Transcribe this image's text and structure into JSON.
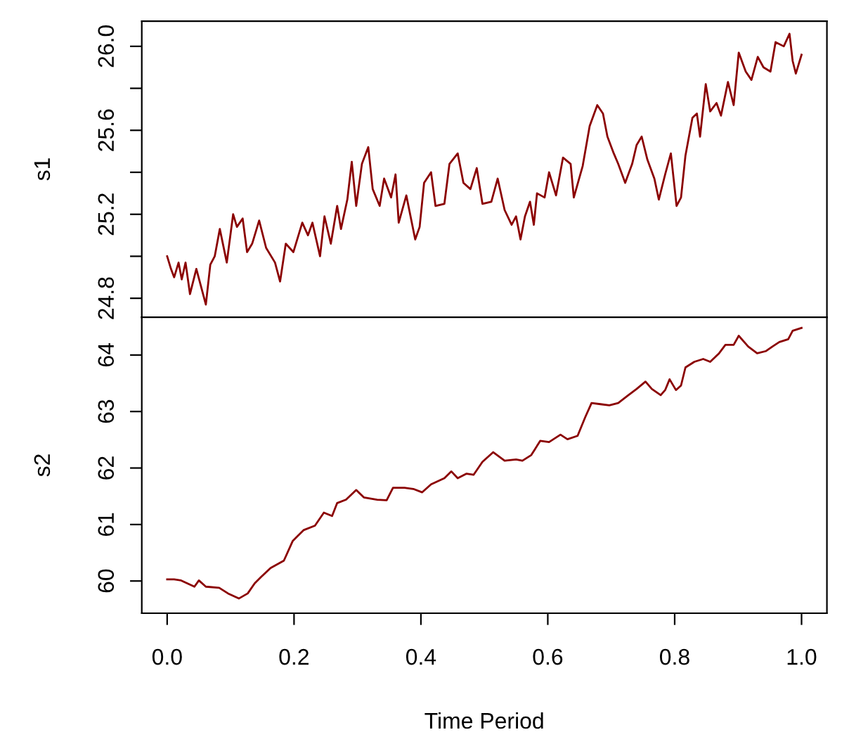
{
  "chart_data": [
    {
      "type": "line",
      "ylabel": "s1",
      "tick_labels": "y",
      "grid": false,
      "xlim": [
        -0.04,
        1.04
      ],
      "ylim": [
        24.71,
        26.12
      ],
      "yticks": [
        24.8,
        {
          "value": 25.0,
          "label": null
        },
        25.2,
        {
          "value": 25.4,
          "label": null
        },
        25.6,
        {
          "value": 25.8,
          "label": null
        },
        {
          "value": 26,
          "label": "26.0"
        }
      ],
      "series": [
        {
          "color": "#8b0000",
          "x": [
            0,
            0.006,
            0.011,
            0.018,
            0.023,
            0.029,
            0.036,
            0.046,
            0.061,
            0.068,
            0.075,
            0.083,
            0.094,
            0.104,
            0.11,
            0.119,
            0.126,
            0.134,
            0.145,
            0.156,
            0.17,
            0.178,
            0.187,
            0.199,
            0.213,
            0.222,
            0.229,
            0.241,
            0.248,
            0.258,
            0.268,
            0.274,
            0.284,
            0.291,
            0.298,
            0.307,
            0.317,
            0.324,
            0.335,
            0.342,
            0.353,
            0.36,
            0.365,
            0.377,
            0.391,
            0.398,
            0.405,
            0.416,
            0.423,
            0.437,
            0.445,
            0.458,
            0.467,
            0.478,
            0.488,
            0.497,
            0.511,
            0.521,
            0.532,
            0.543,
            0.55,
            0.557,
            0.564,
            0.572,
            0.578,
            0.583,
            0.595,
            0.602,
            0.613,
            0.624,
            0.636,
            0.641,
            0.655,
            0.666,
            0.678,
            0.687,
            0.694,
            0.704,
            0.711,
            0.722,
            0.733,
            0.74,
            0.748,
            0.757,
            0.768,
            0.775,
            0.785,
            0.794,
            0.803,
            0.81,
            0.817,
            0.828,
            0.835,
            0.84,
            0.849,
            0.856,
            0.866,
            0.873,
            0.884,
            0.893,
            0.901,
            0.912,
            0.921,
            0.931,
            0.94,
            0.951,
            0.959,
            0.972,
            0.981,
            0.986,
            0.991,
            1.0
          ],
          "values": [
            25.0,
            24.94,
            24.9,
            24.97,
            24.89,
            24.97,
            24.82,
            24.94,
            24.77,
            24.96,
            25.0,
            25.13,
            24.97,
            25.2,
            25.14,
            25.18,
            25.02,
            25.06,
            25.17,
            25.04,
            24.97,
            24.88,
            25.06,
            25.02,
            25.16,
            25.1,
            25.16,
            25.0,
            25.19,
            25.06,
            25.24,
            25.13,
            25.27,
            25.45,
            25.24,
            25.44,
            25.52,
            25.32,
            25.24,
            25.37,
            25.28,
            25.39,
            25.16,
            25.29,
            25.08,
            25.14,
            25.35,
            25.4,
            25.24,
            25.25,
            25.44,
            25.49,
            25.35,
            25.32,
            25.42,
            25.25,
            25.26,
            25.37,
            25.22,
            25.15,
            25.19,
            25.08,
            25.19,
            25.26,
            25.15,
            25.3,
            25.28,
            25.4,
            25.29,
            25.47,
            25.44,
            25.28,
            25.43,
            25.62,
            25.72,
            25.68,
            25.57,
            25.49,
            25.44,
            25.35,
            25.44,
            25.53,
            25.57,
            25.46,
            25.37,
            25.27,
            25.39,
            25.49,
            25.24,
            25.28,
            25.48,
            25.66,
            25.68,
            25.57,
            25.82,
            25.69,
            25.73,
            25.67,
            25.83,
            25.72,
            25.97,
            25.88,
            25.84,
            25.95,
            25.9,
            25.88,
            26.02,
            26.0,
            26.06,
            25.93,
            25.87,
            25.96
          ]
        }
      ]
    },
    {
      "type": "line",
      "ylabel": "s2",
      "xlabel": "Time Period",
      "grid": false,
      "xlim": [
        -0.04,
        1.04
      ],
      "ylim": [
        59.43,
        64.67
      ],
      "xticks": [
        {
          "value": 0,
          "label": "0.0"
        },
        0.2,
        0.4,
        0.6,
        0.8,
        {
          "value": 1,
          "label": "1.0"
        }
      ],
      "yticks": [
        60,
        61,
        62,
        63,
        64
      ],
      "series": [
        {
          "color": "#8b0000",
          "x": [
            0,
            0.011,
            0.022,
            0.043,
            0.05,
            0.061,
            0.082,
            0.096,
            0.113,
            0.127,
            0.138,
            0.148,
            0.163,
            0.184,
            0.198,
            0.215,
            0.233,
            0.247,
            0.26,
            0.268,
            0.282,
            0.298,
            0.31,
            0.331,
            0.346,
            0.356,
            0.374,
            0.388,
            0.402,
            0.416,
            0.437,
            0.448,
            0.458,
            0.472,
            0.483,
            0.497,
            0.514,
            0.532,
            0.55,
            0.56,
            0.574,
            0.588,
            0.602,
            0.62,
            0.631,
            0.647,
            0.659,
            0.669,
            0.683,
            0.697,
            0.711,
            0.726,
            0.74,
            0.754,
            0.764,
            0.778,
            0.785,
            0.792,
            0.802,
            0.81,
            0.817,
            0.831,
            0.845,
            0.856,
            0.87,
            0.88,
            0.893,
            0.901,
            0.916,
            0.93,
            0.944,
            0.954,
            0.965,
            0.979,
            0.986,
            1.0
          ],
          "values": [
            60.03,
            60.03,
            60.01,
            59.9,
            60.01,
            59.9,
            59.88,
            59.78,
            59.69,
            59.78,
            59.96,
            60.07,
            60.23,
            60.36,
            60.71,
            60.9,
            60.98,
            61.21,
            61.15,
            61.38,
            61.44,
            61.61,
            61.48,
            61.44,
            61.43,
            61.65,
            61.65,
            61.63,
            61.57,
            61.71,
            61.82,
            61.94,
            61.82,
            61.9,
            61.88,
            62.11,
            62.28,
            62.13,
            62.15,
            62.13,
            62.23,
            62.48,
            62.46,
            62.59,
            62.51,
            62.57,
            62.9,
            63.15,
            63.13,
            63.11,
            63.15,
            63.28,
            63.4,
            63.53,
            63.4,
            63.29,
            63.38,
            63.57,
            63.38,
            63.46,
            63.78,
            63.88,
            63.93,
            63.88,
            64.03,
            64.18,
            64.18,
            64.34,
            64.15,
            64.03,
            64.07,
            64.15,
            64.23,
            64.28,
            64.43,
            64.48
          ]
        }
      ]
    }
  ]
}
